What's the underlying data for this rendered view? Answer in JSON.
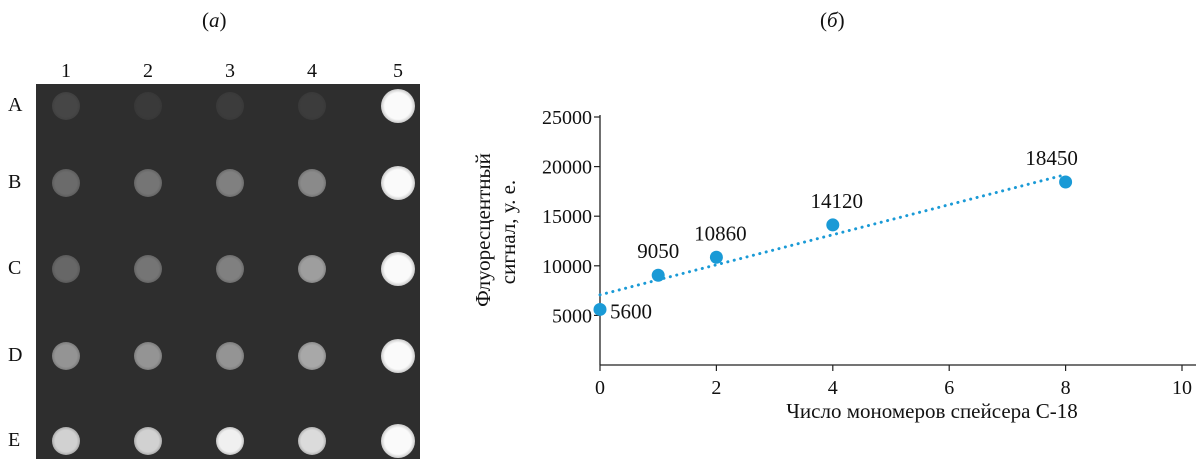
{
  "panels": {
    "a_label": "а",
    "b_label": "б"
  },
  "microarray": {
    "columns": [
      "1",
      "2",
      "3",
      "4",
      "5"
    ],
    "rows": [
      "A",
      "B",
      "C",
      "D",
      "E"
    ],
    "intensity": [
      [
        0.12,
        0.06,
        0.07,
        0.07,
        1.0
      ],
      [
        0.3,
        0.35,
        0.4,
        0.45,
        1.0
      ],
      [
        0.28,
        0.35,
        0.4,
        0.55,
        1.0
      ],
      [
        0.5,
        0.5,
        0.5,
        0.6,
        1.0
      ],
      [
        0.8,
        0.8,
        0.95,
        0.85,
        1.0
      ]
    ],
    "background_color": "#2e2e2e"
  },
  "chart_data": {
    "type": "scatter",
    "x": [
      0,
      1,
      2,
      4,
      8
    ],
    "y": [
      5600,
      9050,
      10860,
      14120,
      18450
    ],
    "data_labels": [
      "5600",
      "9050",
      "10860",
      "14120",
      "18450"
    ],
    "trendline": {
      "type": "linear",
      "style": "dotted",
      "x_range": [
        0,
        8
      ]
    },
    "xlabel": "Число мономеров спейсера С-18",
    "ylabel_line1": "Флуоресцентный",
    "ylabel_line2": "сигнал, у. е.",
    "xlim": [
      0,
      10
    ],
    "ylim": [
      0,
      25000
    ],
    "x_ticks": [
      "0",
      "2",
      "4",
      "6",
      "8",
      "10"
    ],
    "y_ticks": [
      "5000",
      "10000",
      "15000",
      "20000",
      "25000"
    ],
    "y_tick_values": [
      5000,
      10000,
      15000,
      20000,
      25000
    ],
    "x_tick_values": [
      0,
      2,
      4,
      6,
      8,
      10
    ],
    "marker_color": "#1a9ad6",
    "line_color": "#1a9ad6"
  }
}
